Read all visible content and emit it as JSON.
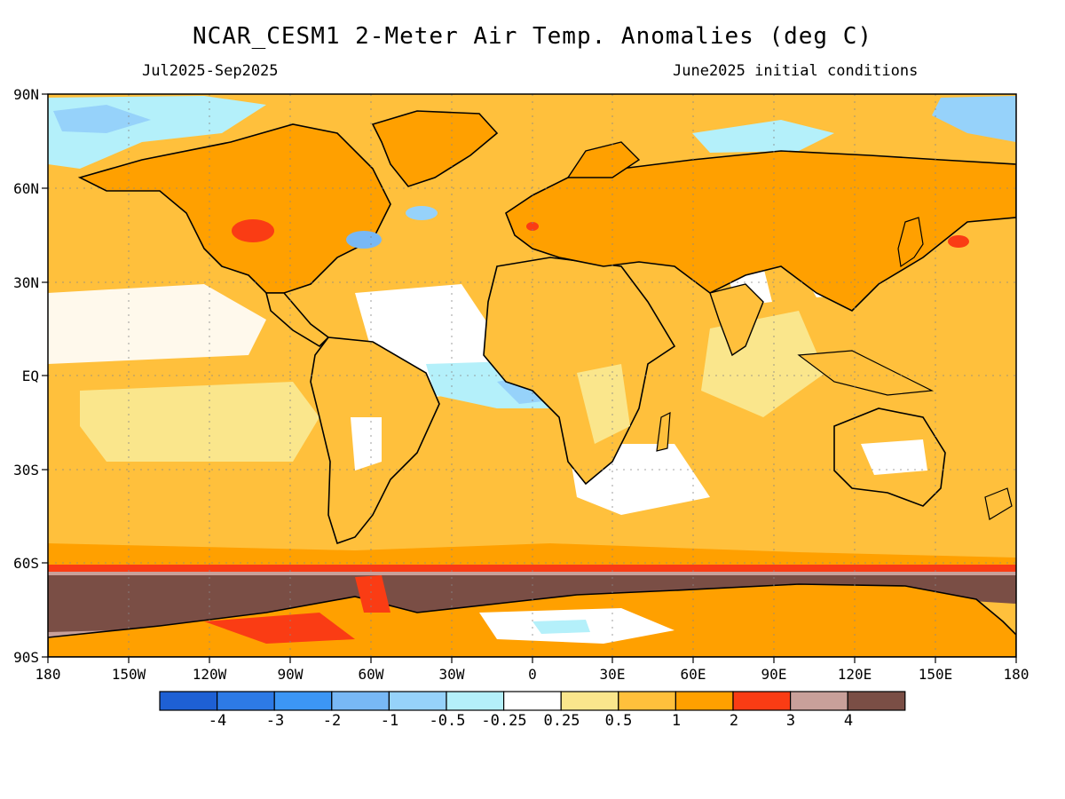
{
  "header": {
    "title": "NCAR_CESM1 2-Meter Air Temp. Anomalies (deg C)",
    "period": "Jul2025-Sep2025",
    "init": "June2025 initial conditions"
  },
  "axes": {
    "lat_labels": [
      "90N",
      "60N",
      "30N",
      "EQ",
      "30S",
      "60S",
      "90S"
    ],
    "lon_labels": [
      "180",
      "150W",
      "120W",
      "90W",
      "60W",
      "30W",
      "0",
      "30E",
      "60E",
      "90E",
      "120E",
      "150E",
      "180"
    ]
  },
  "colorbar": {
    "labels": [
      "-4",
      "-3",
      "-2",
      "-1",
      "-0.5",
      "-0.25",
      "0.25",
      "0.5",
      "1",
      "2",
      "3",
      "4"
    ],
    "colors": [
      "#1e60d4",
      "#2d7ae6",
      "#3c96f5",
      "#78b8f5",
      "#96d2fa",
      "#b4f0fa",
      "#ffffff",
      "#fae68c",
      "#ffc03c",
      "#ffa000",
      "#fa3c14",
      "#c8a09a",
      "#7a4e45"
    ]
  },
  "map": {
    "ocean_color": "#ffc03c",
    "land_color": "#ffa000",
    "antarctic_band_color": "#7a4e45",
    "coast_color": "#000000"
  }
}
